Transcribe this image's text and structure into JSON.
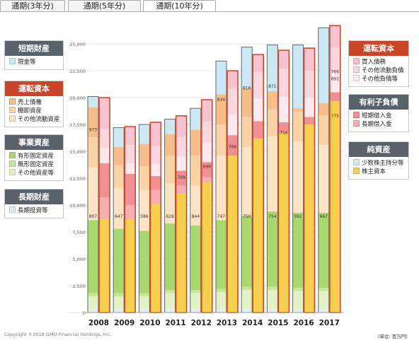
{
  "tabs": [
    {
      "label": "通期(3年分)"
    },
    {
      "label": "通期(5年分)"
    },
    {
      "label": "通期(10年分)"
    }
  ],
  "active_tab": 2,
  "legends_left": [
    {
      "title": "短期財産",
      "items": [
        {
          "label": "現金等",
          "color": "#cde8f5"
        }
      ]
    },
    {
      "title": "運転資本",
      "items": [
        {
          "label": "売上債権",
          "color": "#f7bd8a"
        },
        {
          "label": "棚卸資産",
          "color": "#fbd3a6"
        },
        {
          "label": "その他流動資産",
          "color": "#fde4c4"
        }
      ]
    },
    {
      "title": "事業資産",
      "items": [
        {
          "label": "有形固定資産",
          "color": "#a9d86e"
        },
        {
          "label": "無形固定資産",
          "color": "#c6e69a"
        },
        {
          "label": "その他資産等",
          "color": "#e2f1c6"
        }
      ]
    },
    {
      "title": "長期財産",
      "items": [
        {
          "label": "長期投資等",
          "color": "#e4edf6"
        }
      ]
    }
  ],
  "legends_right": [
    {
      "title": "運転資本",
      "items": [
        {
          "label": "買入債務",
          "color": "#f7c3cf"
        },
        {
          "label": "その他流動負債",
          "color": "#fad6de"
        },
        {
          "label": "その他負債等",
          "color": "#fde9ee"
        }
      ]
    },
    {
      "title": "有利子負債",
      "items": [
        {
          "label": "短期借入金",
          "color": "#f08f94"
        },
        {
          "label": "長期借入金",
          "color": "#f6b0b3"
        }
      ]
    },
    {
      "title": "純資産",
      "items": [
        {
          "label": "少数株主持分等",
          "color": "#d9e4f5"
        },
        {
          "label": "株主資本",
          "color": "#f7cf4f"
        }
      ]
    }
  ],
  "copyright": "Copyright ©2018 GMO Financial Holdings, Inc.",
  "unit_note": "(単位: 百万円)",
  "chart_data": {
    "type": "bar",
    "stacked": true,
    "ylim": [
      0,
      27500
    ],
    "yticks": [
      "0",
      "2,500",
      "5,000",
      "7,500",
      "10,000",
      "12,500",
      "15,000",
      "17,500",
      "20,000",
      "22,500",
      "25,000"
    ],
    "ytick_values": [
      0,
      2500,
      5000,
      7500,
      10000,
      12500,
      15000,
      17500,
      20000,
      22500,
      25000
    ],
    "categories": [
      "2008",
      "2009",
      "2010",
      "2011",
      "2012",
      "2013",
      "2014",
      "2015",
      "2016",
      "2017"
    ],
    "assets": [
      {
        "name": "長期投資等",
        "color": "#e4edf6",
        "values": [
          300,
          300,
          300,
          300,
          300,
          300,
          300,
          300,
          300,
          300
        ]
      },
      {
        "name": "その他資産等",
        "color": "#e2f1c6",
        "values": [
          1200,
          1200,
          1200,
          1500,
          1500,
          1600,
          1800,
          1800,
          1700,
          1700
        ]
      },
      {
        "name": "無形固定資産",
        "color": "#c6e69a",
        "values": [
          300,
          300,
          300,
          300,
          300,
          300,
          300,
          300,
          300,
          300
        ]
      },
      {
        "name": "有形固定資産",
        "color": "#a9d86e",
        "values": [
          6800,
          6000,
          5800,
          6200,
          6000,
          6400,
          6600,
          7000,
          7000,
          7000
        ]
      },
      {
        "name": "その他流動資産",
        "color": "#fde4c4",
        "values": [
          4900,
          3800,
          3800,
          3700,
          3700,
          6000,
          6400,
          7000,
          6600,
          6300
        ]
      },
      {
        "name": "棚卸資産",
        "color": "#fbd3a6",
        "values": [
          2800,
          2100,
          2200,
          2600,
          2800,
          2900,
          2800,
          2500,
          2800,
          2700
        ]
      },
      {
        "name": "売上債権",
        "color": "#f7bd8a",
        "values": [
          2800,
          1700,
          2100,
          2000,
          2400,
          2800,
          2700,
          1700,
          300,
          1200
        ]
      },
      {
        "name": "現金等",
        "color": "#cde8f5",
        "values": [
          1000,
          1800,
          1800,
          1400,
          2000,
          3100,
          3800,
          4300,
          5900,
          7000
        ]
      }
    ],
    "liabilities": [
      {
        "name": "株主資本",
        "color": "#f7cf4f",
        "values": [
          8700,
          8700,
          10100,
          11100,
          12100,
          14600,
          16200,
          16700,
          17500,
          19700
        ]
      },
      {
        "name": "少数株主持分等",
        "color": "#d9e4f5",
        "values": [
          0,
          0,
          0,
          0,
          0,
          0,
          0,
          0,
          0,
          0
        ]
      },
      {
        "name": "長期借入金",
        "color": "#f6b0b3",
        "values": [
          2000,
          1300,
          1300,
          700,
          500,
          0,
          0,
          0,
          0,
          0
        ]
      },
      {
        "name": "短期借入金",
        "color": "#f08f94",
        "values": [
          3200,
          2900,
          1300,
          1400,
          1400,
          1900,
          1600,
          1000,
          700,
          800
        ]
      },
      {
        "name": "その他負債等",
        "color": "#fde9ee",
        "values": [
          1400,
          1000,
          1100,
          1300,
          1800,
          1900,
          2100,
          2400,
          1800,
          1900
        ]
      },
      {
        "name": "その他流動負債",
        "color": "#fad6de",
        "values": [
          1800,
          1700,
          1700,
          1800,
          2000,
          2400,
          2500,
          2600,
          2500,
          2300
        ]
      },
      {
        "name": "買入債務",
        "color": "#f7c3cf",
        "values": [
          2900,
          1700,
          2200,
          2000,
          2000,
          1700,
          1600,
          1700,
          2100,
          2000
        ]
      }
    ],
    "labels_bottom": [
      "807",
      "647",
      "586",
      "628",
      "844",
      "747",
      "750",
      "754",
      "591",
      "667"
    ],
    "labels_mid": [
      "",
      "",
      "",
      "709",
      "698",
      "766",
      "",
      "716",
      "",
      "775"
    ],
    "labels_top": [
      "973",
      "",
      "",
      "",
      "",
      "834",
      "816",
      "871",
      "",
      "766,692"
    ],
    "xlabel": "",
    "ylabel": ""
  }
}
